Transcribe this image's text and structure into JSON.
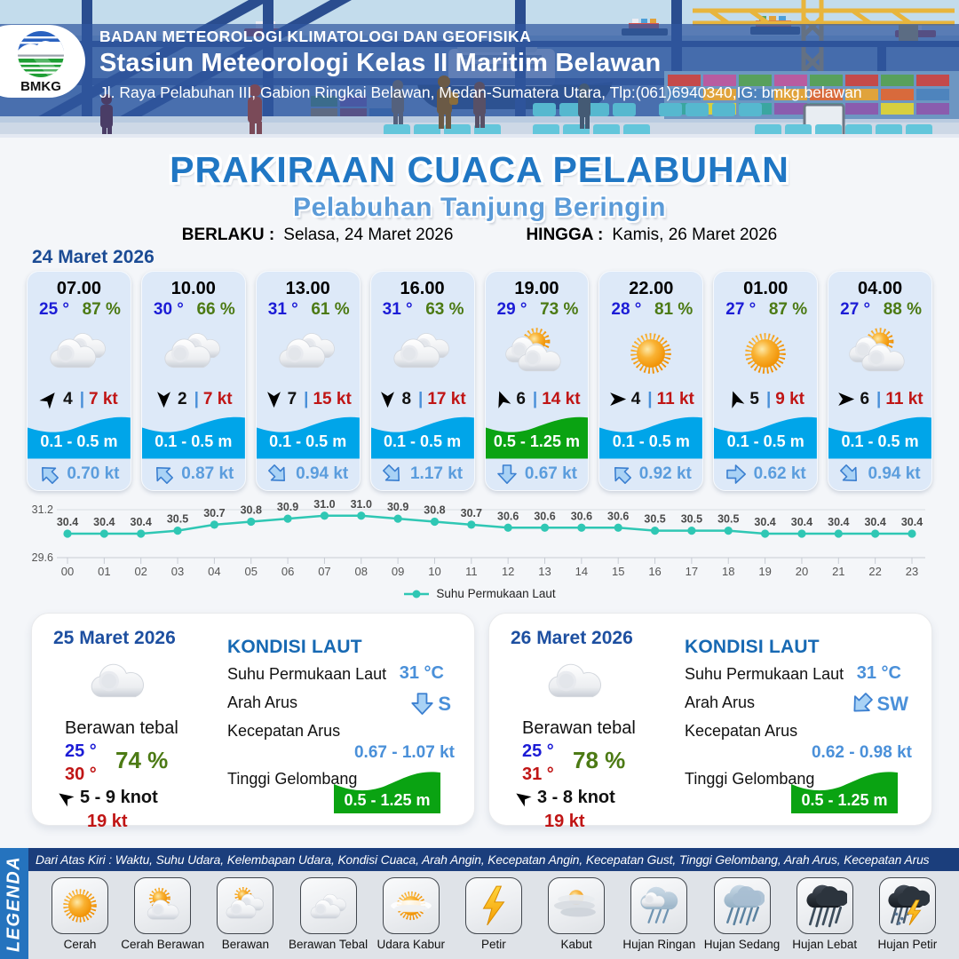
{
  "header": {
    "agency": "BADAN METEOROLOGI KLIMATOLOGI DAN GEOFISIKA",
    "station": "Stasiun Meteorologi Kelas II Maritim Belawan",
    "address": "Jl. Raya Pelabuhan III, Gabion Ringkai Belawan, Medan-Sumatera Utara, Tlp:(061)6940340,IG: bmkg.belawan",
    "logo_text": "BMKG"
  },
  "title": {
    "main": "PRAKIRAAN CUACA PELABUHAN",
    "sub": "Pelabuhan Tanjung Beringin",
    "berlaku_label": "BERLAKU :",
    "berlaku_value": "Selasa, 24 Maret 2026",
    "hingga_label": "HINGGA :",
    "hingga_value": "Kamis, 26 Maret 2026"
  },
  "forecast": {
    "date_label": "24 Maret 2026",
    "cards": [
      {
        "time": "07.00",
        "temp": "25 °",
        "humidity": "87 %",
        "icon": "berawan",
        "wind_dir_deg": 40,
        "wind_value": "4",
        "separator": "|",
        "wind_gust": "7 kt",
        "wave_height": "0.1 - 0.5 m",
        "wave_color": "#00a5e9",
        "current_dir_deg": -45,
        "current_speed": "0.70 kt"
      },
      {
        "time": "10.00",
        "temp": "30 °",
        "humidity": "66 %",
        "icon": "berawan",
        "wind_dir_deg": 180,
        "wind_value": "2",
        "separator": "|",
        "wind_gust": "7 kt",
        "wave_height": "0.1 - 0.5 m",
        "wave_color": "#00a5e9",
        "current_dir_deg": -45,
        "current_speed": "0.87 kt"
      },
      {
        "time": "13.00",
        "temp": "31 °",
        "humidity": "61 %",
        "icon": "berawan",
        "wind_dir_deg": 180,
        "wind_value": "7",
        "separator": "|",
        "wind_gust": "15 kt",
        "wave_height": "0.1 - 0.5 m",
        "wave_color": "#00a5e9",
        "current_dir_deg": 135,
        "current_speed": "0.94 kt"
      },
      {
        "time": "16.00",
        "temp": "31 °",
        "humidity": "63 %",
        "icon": "berawan",
        "wind_dir_deg": 180,
        "wind_value": "8",
        "separator": "|",
        "wind_gust": "17 kt",
        "wave_height": "0.1 - 0.5 m",
        "wave_color": "#00a5e9",
        "current_dir_deg": 135,
        "current_speed": "1.17 kt"
      },
      {
        "time": "19.00",
        "temp": "29 °",
        "humidity": "73 %",
        "icon": "cerah-berawan",
        "wind_dir_deg": -20,
        "wind_value": "6",
        "separator": "|",
        "wind_gust": "14 kt",
        "wave_height": "0.5 - 1.25 m",
        "wave_color": "#0aa312",
        "current_dir_deg": 180,
        "current_speed": "0.67 kt"
      },
      {
        "time": "22.00",
        "temp": "28 °",
        "humidity": "81 %",
        "icon": "cerah",
        "wind_dir_deg": 90,
        "wind_value": "4",
        "separator": "|",
        "wind_gust": "11 kt",
        "wave_height": "0.1 - 0.5 m",
        "wave_color": "#00a5e9",
        "current_dir_deg": -45,
        "current_speed": "0.92 kt"
      },
      {
        "time": "01.00",
        "temp": "27 °",
        "humidity": "87 %",
        "icon": "cerah",
        "wind_dir_deg": -20,
        "wind_value": "5",
        "separator": "|",
        "wind_gust": "9 kt",
        "wave_height": "0.1 - 0.5 m",
        "wave_color": "#00a5e9",
        "current_dir_deg": 90,
        "current_speed": "0.62 kt"
      },
      {
        "time": "04.00",
        "temp": "27 °",
        "humidity": "88 %",
        "icon": "cerah-berawan",
        "wind_dir_deg": 90,
        "wind_value": "6",
        "separator": "|",
        "wind_gust": "11 kt",
        "wave_height": "0.1 - 0.5 m",
        "wave_color": "#00a5e9",
        "current_dir_deg": 135,
        "current_speed": "0.94 kt"
      }
    ]
  },
  "chart_data": {
    "type": "line",
    "x": [
      "00",
      "01",
      "02",
      "03",
      "04",
      "05",
      "06",
      "07",
      "08",
      "09",
      "10",
      "11",
      "12",
      "13",
      "14",
      "15",
      "16",
      "17",
      "18",
      "19",
      "20",
      "21",
      "22",
      "23"
    ],
    "series": [
      {
        "name": "Suhu Permukaan Laut",
        "values": [
          30.4,
          30.4,
          30.4,
          30.5,
          30.7,
          30.8,
          30.9,
          31.0,
          31.0,
          30.9,
          30.8,
          30.7,
          30.6,
          30.6,
          30.6,
          30.6,
          30.5,
          30.5,
          30.5,
          30.4,
          30.4,
          30.4,
          30.4,
          30.4
        ]
      }
    ],
    "ylim": [
      29.6,
      31.2
    ],
    "yticks": [
      "31.2",
      "29.6"
    ],
    "line_color": "#2fc7b4",
    "grid": true,
    "legend_position": "bottom"
  },
  "daily": [
    {
      "date": "25 Maret 2026",
      "icon": "cloud",
      "condition": "Berawan tebal",
      "temp_min": "25 °",
      "temp_max": "30 °",
      "humidity": "74 %",
      "wind_dir_deg": -55,
      "wind_range": "5 - 9 knot",
      "gust": "19 kt",
      "sea": {
        "heading": "KONDISI LAUT",
        "sst_label": "Suhu Permukaan Laut",
        "sst_value": "31 °C",
        "current_dir_label": "Arah Arus",
        "current_dir_deg": 180,
        "current_dir_text": "S",
        "current_speed_label": "Kecepatan Arus",
        "current_speed_value": "0.67 - 1.07 kt",
        "wave_label": "Tinggi Gelombang",
        "wave_value": "0.5 - 1.25 m",
        "wave_color": "#0aa312"
      }
    },
    {
      "date": "26 Maret 2026",
      "icon": "cloud",
      "condition": "Berawan tebal",
      "temp_min": "25 °",
      "temp_max": "31 °",
      "humidity": "78 %",
      "wind_dir_deg": -55,
      "wind_range": "3 - 8 knot",
      "gust": "19 kt",
      "sea": {
        "heading": "KONDISI LAUT",
        "sst_label": "Suhu Permukaan Laut",
        "sst_value": "31 °C",
        "current_dir_label": "Arah Arus",
        "current_dir_deg": 225,
        "current_dir_text": "SW",
        "current_speed_label": "Kecepatan Arus",
        "current_speed_value": "0.62 - 0.98 kt",
        "wave_label": "Tinggi Gelombang",
        "wave_value": "0.5 - 1.25 m",
        "wave_color": "#0aa312"
      }
    }
  ],
  "legend": {
    "side_label": "LEGENDA",
    "info_text": "Dari Atas Kiri : Waktu, Suhu Udara, Kelembapan Udara, Kondisi Cuaca, Arah Angin, Kecepatan Angin, Kecepatan Gust, Tinggi Gelombang, Arah Arus, Kecepatan Arus",
    "items": [
      {
        "icon": "leg-cerah",
        "label": "Cerah"
      },
      {
        "icon": "leg-cerah-berawan",
        "label": "Cerah Berawan"
      },
      {
        "icon": "leg-berawan",
        "label": "Berawan"
      },
      {
        "icon": "leg-berawan-tebal",
        "label": "Berawan Tebal"
      },
      {
        "icon": "leg-udara-kabur",
        "label": "Udara Kabur"
      },
      {
        "icon": "leg-petir",
        "label": "Petir"
      },
      {
        "icon": "leg-kabut",
        "label": "Kabut"
      },
      {
        "icon": "leg-hujan-ringan",
        "label": "Hujan Ringan"
      },
      {
        "icon": "leg-hujan-sedang",
        "label": "Hujan Sedang"
      },
      {
        "icon": "leg-hujan-lebat",
        "label": "Hujan Lebat"
      },
      {
        "icon": "leg-hujan-petir",
        "label": "Hujan Petir"
      }
    ]
  }
}
